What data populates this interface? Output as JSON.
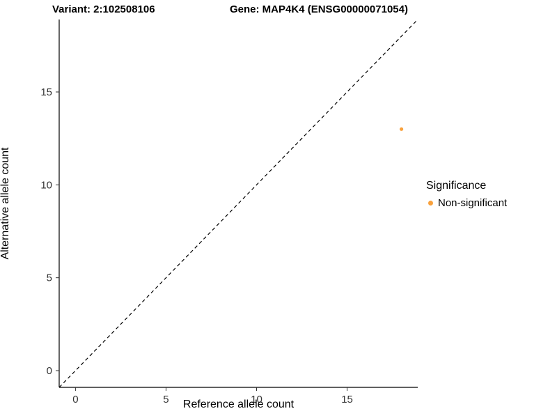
{
  "chart_data": {
    "type": "scatter",
    "title_left": "Variant: 2:102508106",
    "title_right": "Gene: MAP4K4 (ENSG00000071054)",
    "xlabel": "Reference allele count",
    "ylabel": "Alternative allele count",
    "xlim": [
      -0.9,
      18.9
    ],
    "ylim": [
      -0.9,
      18.9
    ],
    "xticks": [
      0,
      5,
      10,
      15
    ],
    "yticks": [
      0,
      5,
      10,
      15
    ],
    "grid": "off",
    "points": [
      {
        "x": 18,
        "y": 13,
        "significance": "Non-significant",
        "color": "#F9A13C"
      }
    ],
    "identity_line": {
      "style": "dashed",
      "color": "#000000",
      "from": [
        -0.9,
        -0.9
      ],
      "to": [
        18.9,
        18.9
      ]
    },
    "legend": {
      "title": "Significance",
      "position": "right",
      "entries": [
        {
          "label": "Non-significant",
          "color": "#F9A13C"
        }
      ]
    }
  }
}
